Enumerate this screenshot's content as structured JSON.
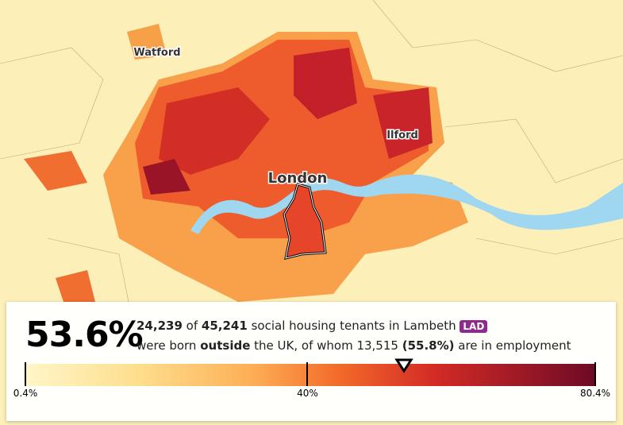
{
  "map_labels": [
    "Watford",
    "Ilford",
    "London"
  ],
  "panel": {
    "headline": {
      "value": 53.6,
      "label": "53.6%"
    },
    "line1": [
      "24,239",
      "of",
      "45,241",
      "social housing tenants in Lambeth"
    ],
    "badge": "LAD",
    "line2": [
      "were born",
      "outside",
      "the UK, of whom 13,515",
      "(55.8%)",
      "are in employment"
    ],
    "scale_ticks": [
      {
        "value": 0.4,
        "label": "0.4%"
      },
      {
        "value": 40,
        "label": "40%"
      },
      {
        "value": 80.4,
        "label": "80.4%"
      }
    ]
  }
}
